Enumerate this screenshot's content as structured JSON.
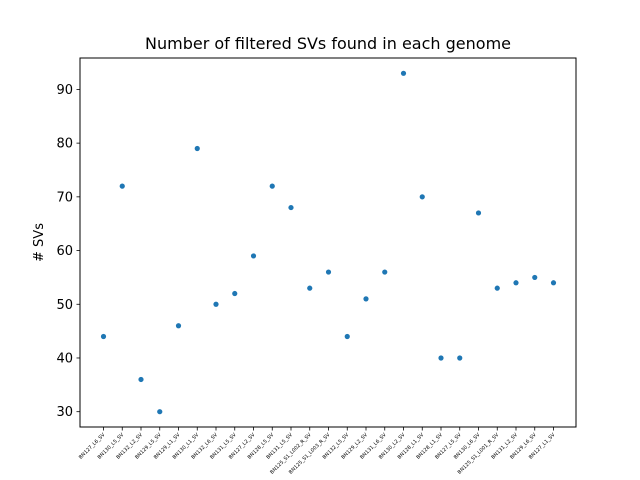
{
  "chart_data": {
    "type": "scatter",
    "title": "Number of filtered SVs found in each genome",
    "xlabel": "",
    "ylabel": "# SVs",
    "categories": [
      "BN127_L6_SV",
      "BN130_L5_SV",
      "BN132_L2_SV",
      "BN129_L5_SV",
      "BN129_L1_SV",
      "BN130_L1_SV",
      "BN132_L6_SV",
      "BN131_L5_SV",
      "BN127_L2_SV",
      "BN128_L5_SV",
      "BN131_L5_SV",
      "BN125_S1_L002_R_SV",
      "BN125_S1_L003_R_SV",
      "BN132_L5_SV",
      "BN129_L2_SV",
      "BN131_L6_SV",
      "BN130_L2_SV",
      "BN128_L1_SV",
      "BN128_L1_SV",
      "BN127_L5_SV",
      "BN130_L6_SV",
      "BN125_S1_L001_R_SV",
      "BN131_L2_SV",
      "BN129_L6_SV",
      "BN127_L1_SV"
    ],
    "values": [
      44,
      72,
      36,
      30,
      46,
      79,
      50,
      52,
      59,
      72,
      68,
      53,
      56,
      44,
      51,
      56,
      93,
      70,
      40,
      40,
      67,
      53,
      54,
      55,
      54
    ],
    "ylim": [
      27.15,
      95.85
    ],
    "yticks": [
      30,
      40,
      50,
      60,
      70,
      80,
      90
    ],
    "grid": false,
    "marker_color": "#1f77b4"
  }
}
